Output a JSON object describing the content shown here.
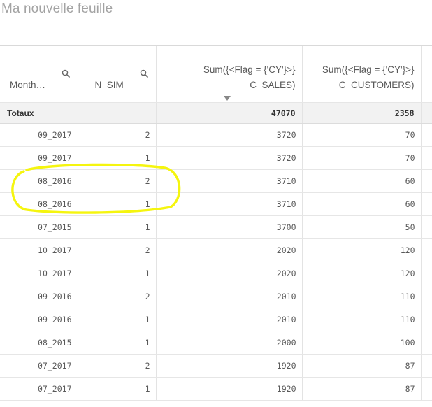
{
  "sheet": {
    "title": "Ma nouvelle feuille"
  },
  "table": {
    "columns": [
      {
        "label": "Month…",
        "has_search": true
      },
      {
        "label": "N_SIM",
        "has_search": true
      },
      {
        "label_line1": "Sum({<Flag = {'CY'}>}",
        "label_line2": "C_SALES)",
        "sorted": "descending"
      },
      {
        "label_line1": "Sum({<Flag = {'CY'}>}",
        "label_line2": "C_CUSTOMERS)"
      }
    ],
    "totals": {
      "label": "Totaux",
      "n_sim": "",
      "sales": "47070",
      "customers": "2358"
    },
    "rows": [
      {
        "month": "09_2017",
        "n_sim": "2",
        "sales": "3720",
        "customers": "70"
      },
      {
        "month": "09_2017",
        "n_sim": "1",
        "sales": "3720",
        "customers": "70"
      },
      {
        "month": "08_2016",
        "n_sim": "2",
        "sales": "3710",
        "customers": "60"
      },
      {
        "month": "08_2016",
        "n_sim": "1",
        "sales": "3710",
        "customers": "60"
      },
      {
        "month": "07_2015",
        "n_sim": "1",
        "sales": "3700",
        "customers": "50"
      },
      {
        "month": "10_2017",
        "n_sim": "2",
        "sales": "2020",
        "customers": "120"
      },
      {
        "month": "10_2017",
        "n_sim": "1",
        "sales": "2020",
        "customers": "120"
      },
      {
        "month": "09_2016",
        "n_sim": "2",
        "sales": "2010",
        "customers": "110"
      },
      {
        "month": "09_2016",
        "n_sim": "1",
        "sales": "2010",
        "customers": "110"
      },
      {
        "month": "08_2015",
        "n_sim": "1",
        "sales": "2000",
        "customers": "100"
      },
      {
        "month": "07_2017",
        "n_sim": "2",
        "sales": "1920",
        "customers": "87"
      },
      {
        "month": "07_2017",
        "n_sim": "1",
        "sales": "1920",
        "customers": "87"
      }
    ]
  },
  "annotation": {
    "color": "#f5f50f",
    "shape": "hand-drawn-ellipse",
    "highlighted_rows": [
      2,
      3
    ]
  },
  "colors": {
    "title": "#a3a3a3",
    "header_text": "#595959",
    "cell_text": "#595959",
    "totals_bg": "#f2f2f2",
    "grid": "#e3e3e3"
  }
}
